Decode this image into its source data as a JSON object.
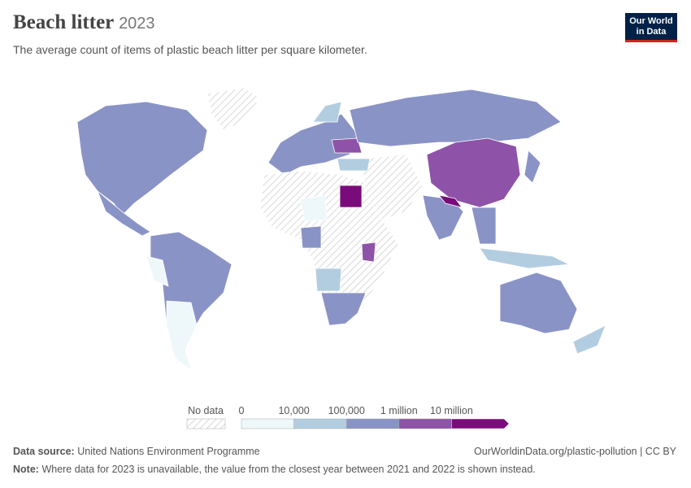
{
  "header": {
    "title": "Beach litter",
    "year": "2023",
    "subtitle": "The average count of items of plastic beach litter per square kilometer.",
    "logo": [
      "Our World",
      "in Data"
    ]
  },
  "legend": {
    "no_data": "No data",
    "ticks": [
      "0",
      "10,000",
      "100,000",
      "1 million",
      "10 million"
    ],
    "colors": [
      "#eef7fa",
      "#b3cde0",
      "#8a93c6",
      "#8e52a8",
      "#7a0b7a"
    ]
  },
  "footer": {
    "source_label": "Data source:",
    "source": "United Nations Environment Programme",
    "url": "OurWorldinData.org/plastic-pollution | CC BY",
    "note_label": "Note:",
    "note": "Where data for 2023 is unavailable, the value from the closest year between 2021 and 2022 is shown instead."
  }
}
